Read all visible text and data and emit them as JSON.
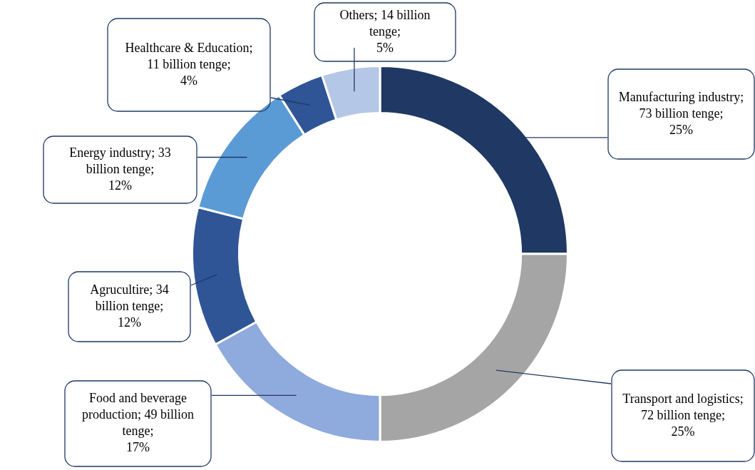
{
  "chart_data": {
    "type": "donut",
    "categories": [
      "Manufacturing industry",
      "Transport and logistics",
      "Food and beverage production",
      "Agrucultire",
      "Energy industry",
      "Healthcare & Education",
      "Others"
    ],
    "values": [
      25,
      25,
      17,
      12,
      12,
      4,
      5
    ],
    "colors": [
      "#1f3864",
      "#a5a5a5",
      "#8faadc",
      "#2f5597",
      "#5b9bd5",
      "#2f5597",
      "#b4c7e7"
    ],
    "value_labels": [
      "; 73 billion tenge; 25%",
      "; 72 billion tenge; 25%",
      "; 49 billion tenge; 17%",
      "; 34 billion tenge; 12%",
      "; 33 billion tenge; 12%",
      "; 11 billion tenge; 4%",
      "; 14 billion tenge; 5%"
    ],
    "legend": false
  }
}
